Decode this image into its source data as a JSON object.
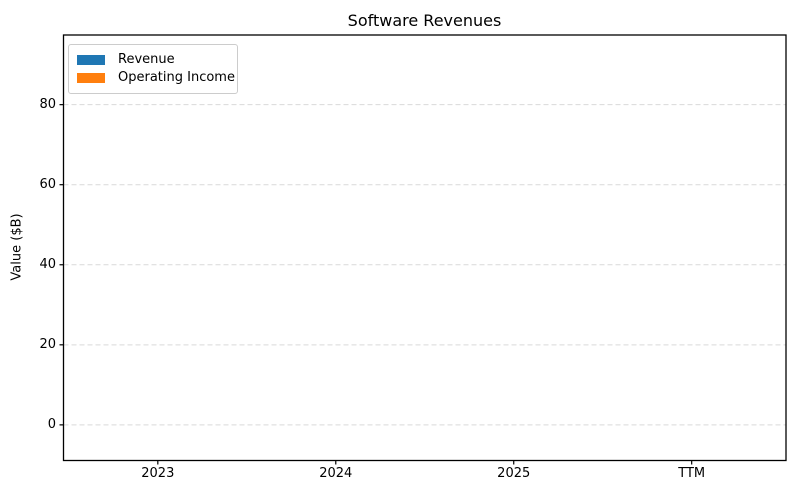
{
  "chart_data": {
    "type": "bar",
    "title": "Software Revenues",
    "xlabel": "",
    "ylabel": "Value ($B)",
    "categories": [
      "2023",
      "2024",
      "2025",
      "TTM"
    ],
    "series": [
      {
        "name": "Revenue",
        "color": "#1f77b4",
        "values": [
          0,
          0,
          0,
          0
        ]
      },
      {
        "name": "Operating Income",
        "color": "#ff7f0e",
        "values": [
          0,
          0,
          0,
          0
        ]
      }
    ],
    "yticks": [
      0,
      20,
      40,
      60,
      80
    ],
    "ylim": [
      -8.9,
      97.4
    ],
    "xlim": [
      -0.53,
      3.53
    ],
    "bar_width": 0.4,
    "grid": {
      "axis": "y",
      "style": "dashed",
      "color": "#d9d9d9"
    },
    "legend": {
      "position": "upper-left",
      "border_color": "#cccccc"
    },
    "spine_color": "#000000",
    "background": "#ffffff"
  }
}
